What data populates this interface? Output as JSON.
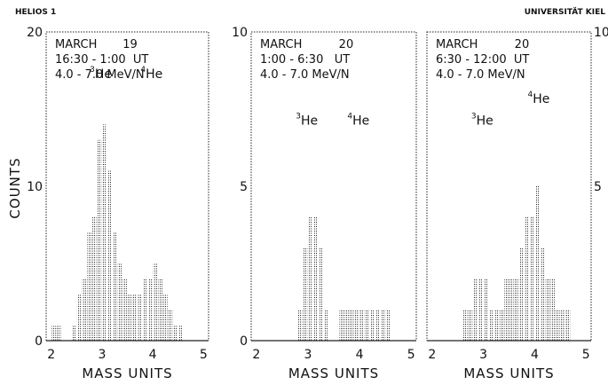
{
  "header": {
    "left": "HELIOS 1",
    "right": "UNIVERSITÄT KIEL"
  },
  "y_axis_label": "COUNTS",
  "chart_data": [
    {
      "type": "bar",
      "info_lines": [
        "MARCH       19",
        "16:30 - 1:00  UT",
        "4.0 - 7.0 MeV/N"
      ],
      "isotope_labels": [
        {
          "mass": "3",
          "element": "He",
          "x": 3.0,
          "y": 17.0
        },
        {
          "mass": "4",
          "element": "He",
          "x": 4.0,
          "y": 17.0
        }
      ],
      "xlabel": "MASS UNITS",
      "xlim": [
        1.9,
        5.1
      ],
      "ylim": [
        0,
        20
      ],
      "xticks": [
        "2",
        "3",
        "4",
        "5"
      ],
      "yticks": [
        "0",
        "10",
        "20"
      ],
      "bin_width": 0.1,
      "x": [
        2.0,
        2.1,
        2.2,
        2.3,
        2.4,
        2.5,
        2.6,
        2.7,
        2.8,
        2.9,
        3.0,
        3.1,
        3.2,
        3.3,
        3.4,
        3.5,
        3.6,
        3.7,
        3.8,
        3.9,
        4.0,
        4.1,
        4.2,
        4.3,
        4.4,
        4.5,
        4.6,
        4.7,
        4.8,
        4.9
      ],
      "values": [
        1,
        1,
        0,
        0,
        1,
        3,
        4,
        7,
        8,
        13,
        14,
        11,
        7,
        5,
        4,
        3,
        3,
        3,
        4,
        4,
        5,
        4,
        3,
        2,
        1,
        1,
        0,
        0,
        0,
        0
      ]
    },
    {
      "type": "bar",
      "info_lines": [
        "MARCH          20",
        "1:00 - 6:30   UT",
        "4.0 - 7.0 MeV/N"
      ],
      "isotope_labels": [
        {
          "mass": "3",
          "element": "He",
          "x": 3.0,
          "y": 7.0
        },
        {
          "mass": "4",
          "element": "He",
          "x": 4.0,
          "y": 7.0
        }
      ],
      "xlabel": "MASS UNITS",
      "xlim": [
        1.9,
        5.1
      ],
      "ylim": [
        0,
        10
      ],
      "xticks": [
        "2",
        "3",
        "4",
        "5"
      ],
      "yticks": [
        "0",
        "5",
        "10"
      ],
      "bin_width": 0.1,
      "x": [
        2.0,
        2.1,
        2.2,
        2.3,
        2.4,
        2.5,
        2.6,
        2.7,
        2.8,
        2.9,
        3.0,
        3.1,
        3.2,
        3.3,
        3.4,
        3.5,
        3.6,
        3.7,
        3.8,
        3.9,
        4.0,
        4.1,
        4.2,
        4.3,
        4.4,
        4.5,
        4.6,
        4.7,
        4.8,
        4.9
      ],
      "values": [
        0,
        0,
        0,
        0,
        0,
        0,
        0,
        0,
        1,
        3,
        4,
        4,
        3,
        1,
        0,
        0,
        1,
        1,
        1,
        1,
        1,
        1,
        1,
        1,
        1,
        1,
        0,
        0,
        0,
        0
      ]
    },
    {
      "type": "bar",
      "info_lines": [
        "MARCH          20",
        "6:30 - 12:00  UT",
        "4.0 - 7.0 MeV/N"
      ],
      "isotope_labels": [
        {
          "mass": "3",
          "element": "He",
          "x": 3.0,
          "y": 7.0
        },
        {
          "mass": "4",
          "element": "He",
          "x": 4.1,
          "y": 7.7
        }
      ],
      "xlabel": "MASS UNITS",
      "xlim": [
        1.9,
        5.1
      ],
      "ylim": [
        0,
        10
      ],
      "xticks": [
        "2",
        "3",
        "4",
        "5"
      ],
      "yticks": [
        "5",
        "10"
      ],
      "bin_width": 0.1,
      "x": [
        2.0,
        2.1,
        2.2,
        2.3,
        2.4,
        2.5,
        2.6,
        2.7,
        2.8,
        2.9,
        3.0,
        3.1,
        3.2,
        3.3,
        3.4,
        3.5,
        3.6,
        3.7,
        3.8,
        3.9,
        4.0,
        4.1,
        4.2,
        4.3,
        4.4,
        4.5,
        4.6,
        4.7,
        4.8,
        4.9
      ],
      "values": [
        0,
        0,
        0,
        0,
        0,
        0,
        1,
        1,
        2,
        2,
        2,
        1,
        1,
        1,
        2,
        2,
        2,
        3,
        4,
        4,
        5,
        3,
        2,
        2,
        1,
        1,
        1,
        0,
        0,
        0
      ]
    }
  ]
}
